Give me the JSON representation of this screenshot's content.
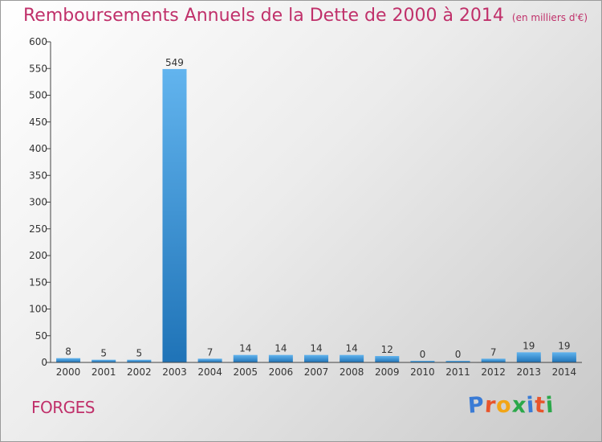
{
  "title": "Remboursements Annuels de la Dette de 2000 à 2014",
  "title_unit": "(en milliers d'€)",
  "commune": "FORGES",
  "logo": {
    "text": "Proxiti",
    "letter_colors": [
      "#3a7bd5",
      "#e8542b",
      "#f2a516",
      "#2ba84a",
      "#3a7bd5",
      "#e8542b",
      "#2ba84a"
    ]
  },
  "colors": {
    "title": "#c0306a",
    "bar_top": "#62b4ee",
    "bar_bottom": "#1f73b7",
    "axis": "#444444"
  },
  "chart_data": {
    "type": "bar",
    "categories": [
      "2000",
      "2001",
      "2002",
      "2003",
      "2004",
      "2005",
      "2006",
      "2007",
      "2008",
      "2009",
      "2010",
      "2011",
      "2012",
      "2013",
      "2014"
    ],
    "values": [
      8,
      5,
      5,
      549,
      7,
      14,
      14,
      14,
      14,
      12,
      0,
      0,
      7,
      19,
      19
    ],
    "value_labels": [
      "8",
      "5",
      "5",
      "549",
      "7",
      "14",
      "14",
      "14",
      "14",
      "12",
      "0",
      "0",
      "7",
      "19",
      "19"
    ],
    "y_ticks": [
      0,
      50,
      100,
      150,
      200,
      250,
      300,
      350,
      400,
      450,
      500,
      550,
      600
    ],
    "ylim": [
      0,
      600
    ],
    "grid": false,
    "legend": "none"
  }
}
